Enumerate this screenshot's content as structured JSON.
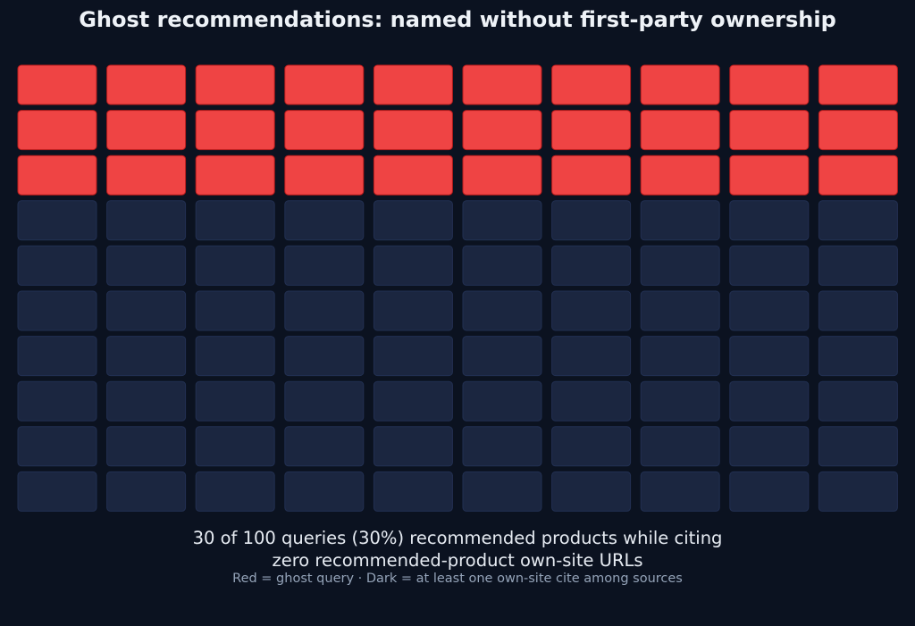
{
  "chart_data": {
    "type": "waffle",
    "title": "Ghost recommendations: named without first-party ownership",
    "total": 100,
    "ghost_count": 30,
    "ghost_percent": 30,
    "rows": 10,
    "columns": 10,
    "categories": [
      {
        "name": "ghost query",
        "count": 30,
        "color": "#ef4444"
      },
      {
        "name": "at least one own-site cite among sources",
        "count": 70,
        "color": "#1b2640"
      }
    ],
    "caption_line1": "30 of 100 queries (30%) recommended products while citing",
    "caption_line2": "zero recommended-product own-site URLs",
    "legend_note": "Red = ghost query · Dark = at least one own-site cite among sources"
  },
  "colors": {
    "background": "#0b1220",
    "ghost": "#ef4444",
    "ghost_edge": "#b91c1c",
    "other": "#1b2640",
    "other_edge": "#223052",
    "title_text": "#eef2f7",
    "caption_text": "#e6ebf2",
    "note_text": "#94a3b8"
  }
}
